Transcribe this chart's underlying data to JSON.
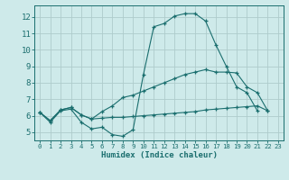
{
  "xlabel": "Humidex (Indice chaleur)",
  "bg_color": "#ceeaea",
  "grid_color": "#aecccc",
  "line_color": "#1a6e6e",
  "xlim": [
    -0.5,
    23.5
  ],
  "ylim": [
    4.5,
    12.7
  ],
  "xticks": [
    0,
    1,
    2,
    3,
    4,
    5,
    6,
    7,
    8,
    9,
    10,
    11,
    12,
    13,
    14,
    15,
    16,
    17,
    18,
    19,
    20,
    21,
    22,
    23
  ],
  "yticks": [
    5,
    6,
    7,
    8,
    9,
    10,
    11,
    12
  ],
  "line1_x": [
    0,
    1,
    2,
    3,
    4,
    5,
    6,
    7,
    8,
    9,
    10,
    11,
    12,
    13,
    14,
    15,
    16,
    17,
    18,
    19,
    20,
    21
  ],
  "line1_y": [
    6.2,
    5.6,
    6.3,
    6.4,
    5.6,
    5.2,
    5.3,
    4.85,
    4.75,
    5.15,
    8.5,
    11.4,
    11.6,
    12.05,
    12.2,
    12.2,
    11.75,
    10.3,
    9.0,
    7.75,
    7.4,
    6.3
  ],
  "line2_x": [
    0,
    1,
    2,
    3,
    4,
    5,
    6,
    7,
    8,
    9,
    10,
    11,
    12,
    13,
    14,
    15,
    16,
    17,
    18,
    19,
    20,
    21,
    22
  ],
  "line2_y": [
    6.2,
    5.7,
    6.35,
    6.5,
    6.05,
    5.8,
    6.25,
    6.6,
    7.1,
    7.25,
    7.5,
    7.75,
    8.0,
    8.25,
    8.5,
    8.65,
    8.8,
    8.65,
    8.65,
    8.6,
    7.75,
    7.4,
    6.3
  ],
  "line3_x": [
    0,
    1,
    2,
    3,
    4,
    5,
    6,
    7,
    8,
    9,
    10,
    11,
    12,
    13,
    14,
    15,
    16,
    17,
    18,
    19,
    20,
    21,
    22
  ],
  "line3_y": [
    6.2,
    5.7,
    6.35,
    6.5,
    6.05,
    5.8,
    5.85,
    5.9,
    5.9,
    5.95,
    6.0,
    6.05,
    6.1,
    6.15,
    6.2,
    6.25,
    6.35,
    6.4,
    6.45,
    6.5,
    6.55,
    6.6,
    6.3
  ]
}
